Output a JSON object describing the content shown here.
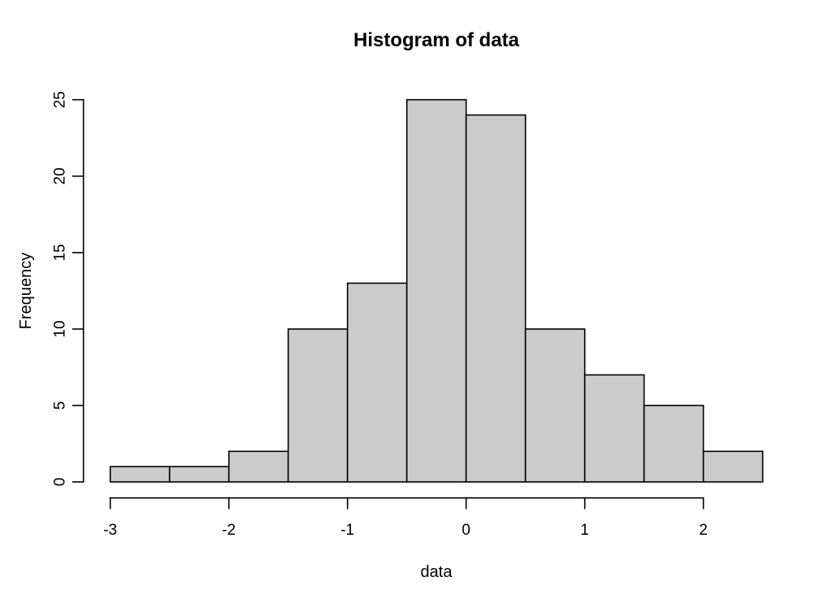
{
  "chart_data": {
    "type": "bar",
    "subtype": "histogram",
    "title": "Histogram of data",
    "xlabel": "data",
    "ylabel": "Frequency",
    "bin_breaks": [
      -3,
      -2.5,
      -2,
      -1.5,
      -1,
      -0.5,
      0,
      0.5,
      1,
      1.5,
      2,
      2.5
    ],
    "counts": [
      1,
      1,
      2,
      10,
      13,
      25,
      24,
      10,
      7,
      5,
      2
    ],
    "x_ticks": [
      -3,
      -2,
      -1,
      0,
      1,
      2
    ],
    "x_tick_labels": [
      "-3",
      "-2",
      "-1",
      "0",
      "1",
      "2"
    ],
    "y_ticks": [
      0,
      5,
      10,
      15,
      20,
      25
    ],
    "y_tick_labels": [
      "0",
      "5",
      "10",
      "15",
      "20",
      "25"
    ],
    "xlim": [
      -3,
      2.5
    ],
    "ylim": [
      0,
      25
    ],
    "grid": false,
    "legend": false,
    "colors": {
      "bar_fill": "#CBCBCB",
      "bar_stroke": "#000000",
      "axis": "#000000",
      "background": "#ffffff",
      "text": "#000000"
    }
  }
}
